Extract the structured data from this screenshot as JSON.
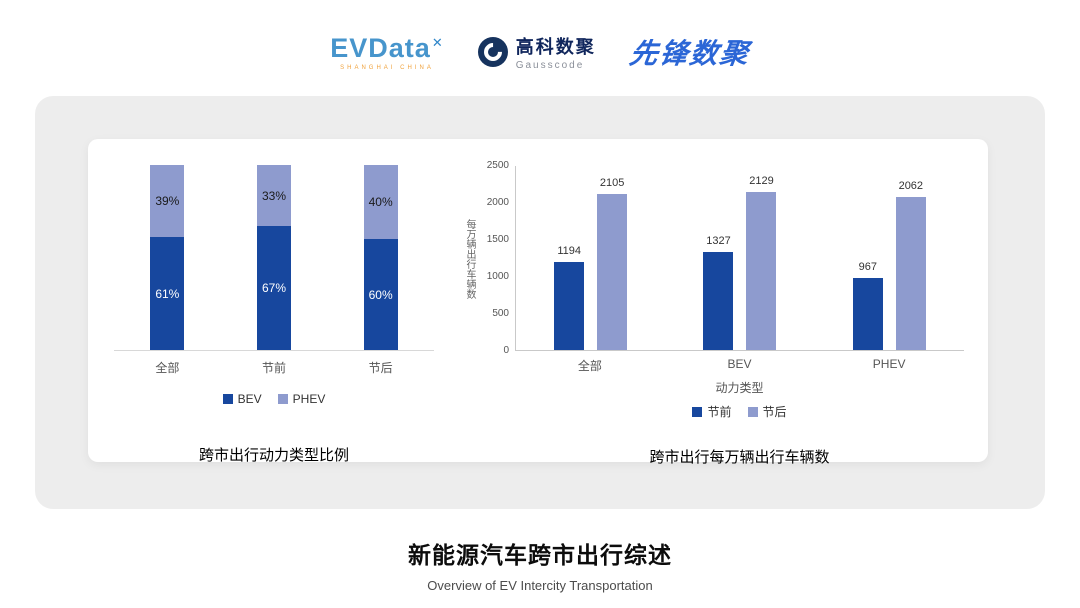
{
  "header": {
    "evdata": {
      "text": "EVData",
      "mark": "✕",
      "subtext": "SHANGHAI CHINA"
    },
    "gausscode": {
      "cn": "高科数聚",
      "en": "Gausscode"
    },
    "pioneer": {
      "text": "先锋数聚"
    }
  },
  "chart_data": [
    {
      "type": "bar",
      "variant": "stacked-percent",
      "title": "跨市出行动力类型比例",
      "categories": [
        "全部",
        "节前",
        "节后"
      ],
      "series": [
        {
          "name": "BEV",
          "color": "#17479e",
          "values": [
            61,
            67,
            60
          ]
        },
        {
          "name": "PHEV",
          "color": "#8e9bce",
          "values": [
            39,
            33,
            40
          ]
        }
      ],
      "value_suffix": "%",
      "ylim": [
        0,
        100
      ],
      "grid": false,
      "legend_position": "bottom"
    },
    {
      "type": "bar",
      "variant": "grouped",
      "title": "跨市出行每万辆出行车辆数",
      "categories": [
        "全部",
        "BEV",
        "PHEV"
      ],
      "xlabel": "动力类型",
      "ylabel": "每万辆出行车辆数",
      "series": [
        {
          "name": "节前",
          "color": "#17479e",
          "values": [
            1194,
            1327,
            967
          ]
        },
        {
          "name": "节后",
          "color": "#8e9bce",
          "values": [
            2105,
            2129,
            2062
          ]
        }
      ],
      "ylim": [
        0,
        2500
      ],
      "yticks": [
        0,
        500,
        1000,
        1500,
        2000,
        2500
      ],
      "grid": false,
      "legend_position": "bottom"
    }
  ],
  "footer": {
    "title": "新能源汽车跨市出行综述",
    "subtitle": "Overview of EV Intercity Transportation"
  }
}
